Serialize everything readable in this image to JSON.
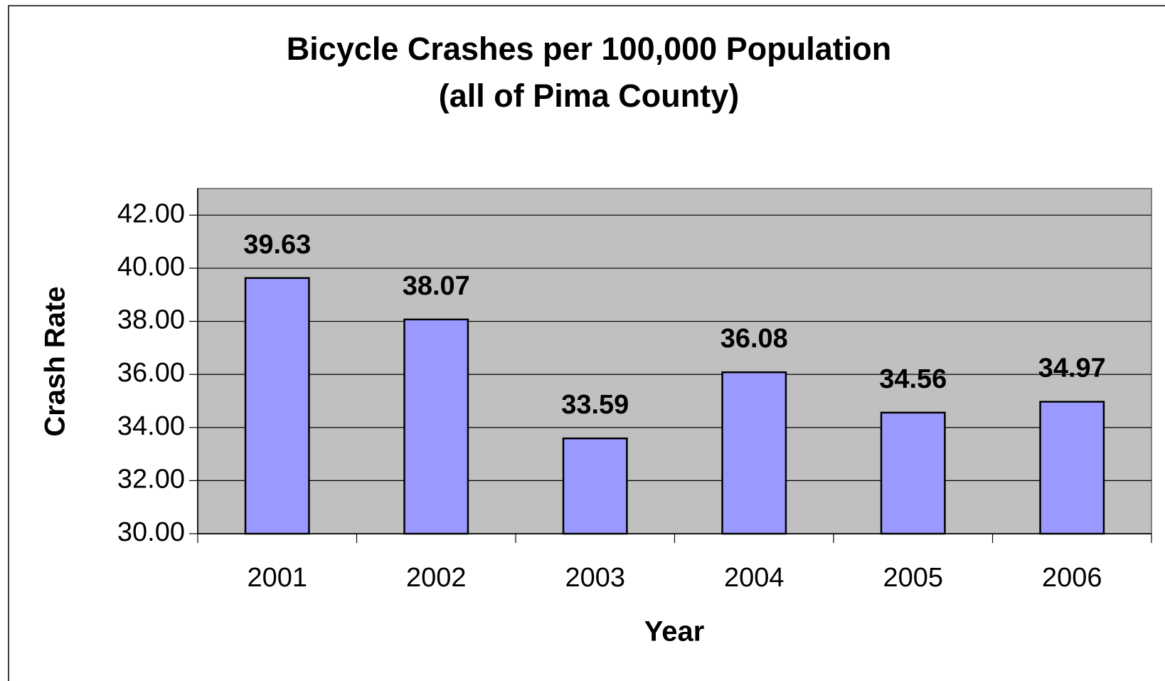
{
  "chart_data": {
    "type": "bar",
    "title": "Bicycle Crashes per 100,000 Population",
    "subtitle": "(all of Pima County)",
    "x_label": "Year",
    "y_label": "Crash Rate",
    "categories": [
      "2001",
      "2002",
      "2003",
      "2004",
      "2005",
      "2006"
    ],
    "values": [
      39.63,
      38.07,
      33.59,
      36.08,
      34.56,
      34.97
    ],
    "color": "#9999ff",
    "plot_background": "#c0c0c0",
    "ylim": [
      30,
      43
    ],
    "yticks": [
      {
        "value": 30,
        "label": "30.00"
      },
      {
        "value": 32,
        "label": "32.00"
      },
      {
        "value": 34,
        "label": "34.00"
      },
      {
        "value": 36,
        "label": "36.00"
      },
      {
        "value": 38,
        "label": "38.00"
      },
      {
        "value": 40,
        "label": "40.00"
      },
      {
        "value": 42,
        "label": "42.00"
      }
    ],
    "grid": true
  }
}
